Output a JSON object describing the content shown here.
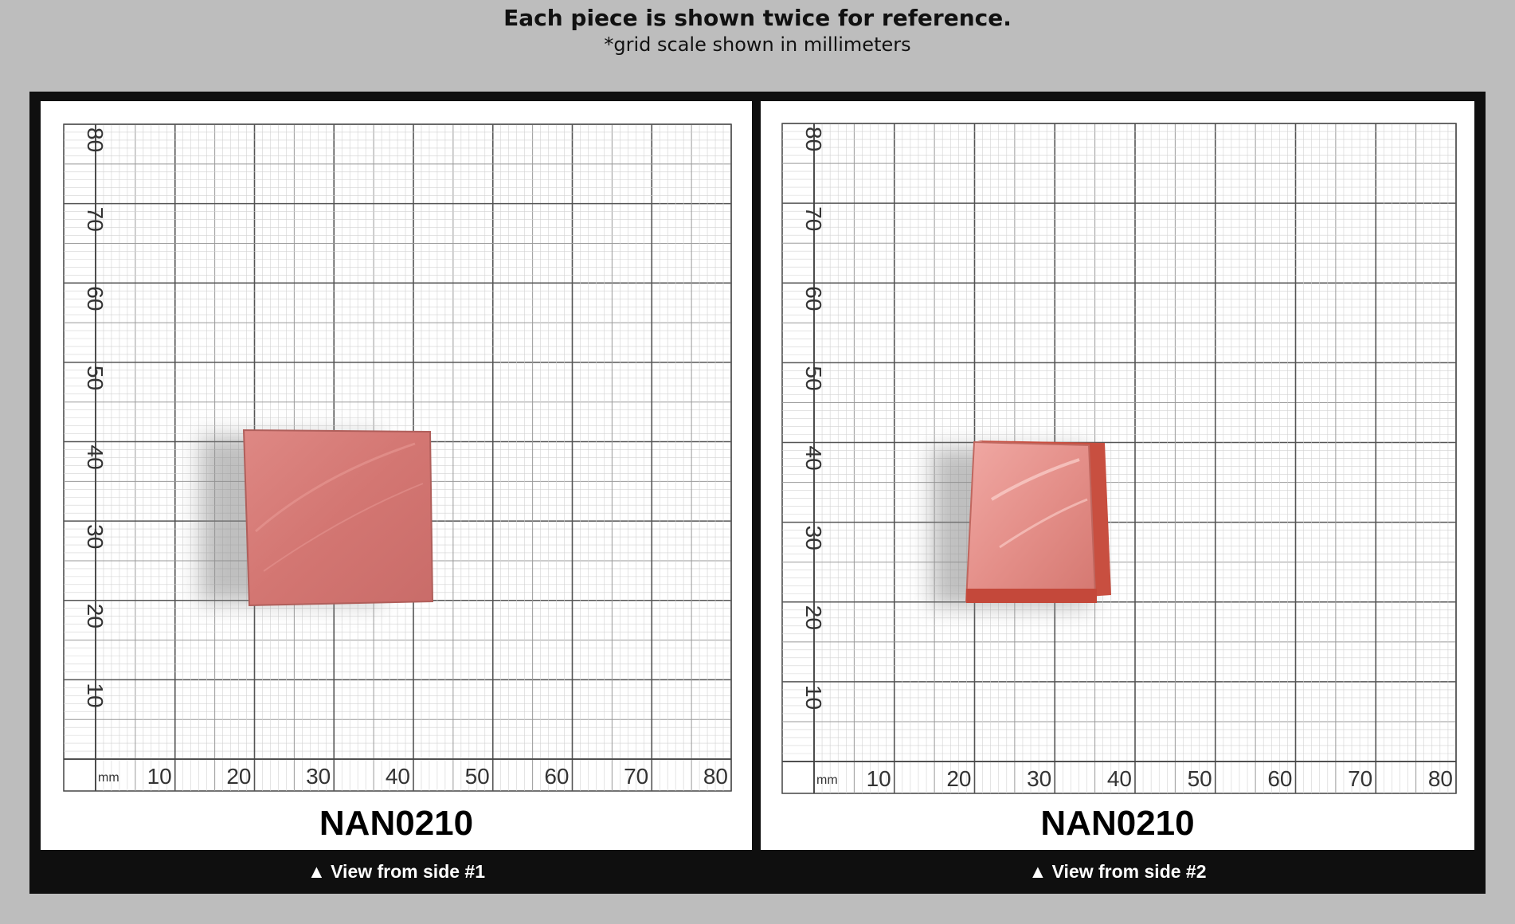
{
  "header": {
    "title": "Each piece is shown twice for reference.",
    "subtitle": "*grid scale shown in millimeters"
  },
  "grid": {
    "unit": "mm",
    "x_ticks": [
      "10",
      "20",
      "30",
      "40",
      "50",
      "60",
      "70",
      "80"
    ],
    "y_ticks": [
      "10",
      "20",
      "30",
      "40",
      "50",
      "60",
      "70",
      "80"
    ]
  },
  "views": [
    {
      "label": "NAN0210",
      "caption": "▲ View from side #1",
      "stone_color": "#d77a76"
    },
    {
      "label": "NAN0210",
      "caption": "▲ View from side #2",
      "stone_color": "#d9736c"
    }
  ]
}
